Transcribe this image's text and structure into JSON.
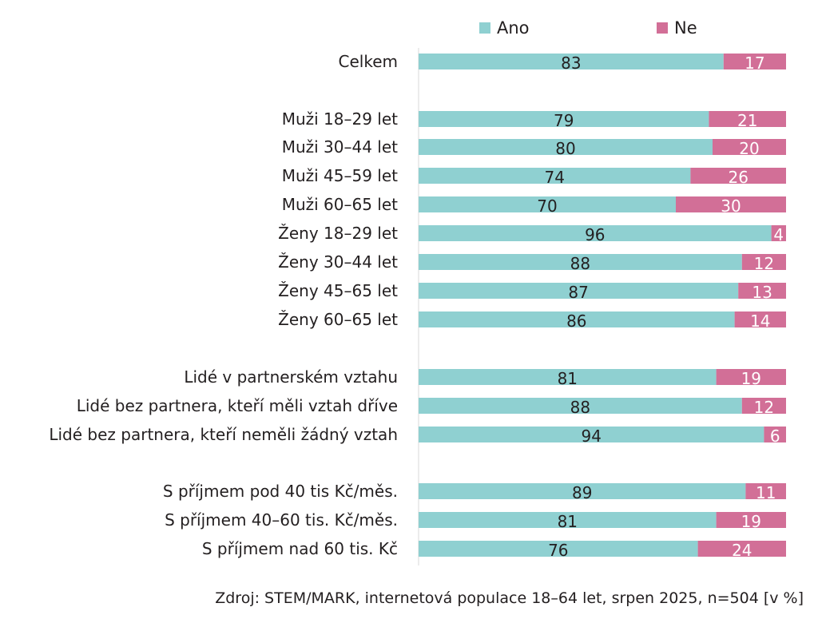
{
  "chart_data": {
    "type": "bar",
    "stacked": true,
    "orientation": "horizontal",
    "xlim": [
      0,
      100
    ],
    "legend_position": "top",
    "colors": {
      "Ano": "#8fd0d1",
      "Ne": "#d26f97"
    },
    "categories": [
      "Celkem",
      "Muži 18–29 let",
      "Muži 30–44 let",
      "Muži 45–59 let",
      "Muži 60–65 let",
      "Ženy 18–29 let",
      "Ženy 30–44 let",
      "Ženy 45–65 let",
      "Ženy 60–65 let",
      "Lidé v partnerském vztahu",
      "Lidé bez partnera, kteří měli vztah dříve",
      "Lidé bez partnera, kteří neměli žádný vztah",
      "S příjmem pod 40 tis Kč/měs.",
      "S příjmem 40–60 tis. Kč/měs.",
      "S příjmem nad 60 tis. Kč"
    ],
    "series": [
      {
        "name": "Ano",
        "values": [
          83,
          79,
          80,
          74,
          70,
          96,
          88,
          87,
          86,
          81,
          88,
          94,
          89,
          81,
          76
        ]
      },
      {
        "name": "Ne",
        "values": [
          17,
          21,
          20,
          26,
          30,
          4,
          12,
          13,
          14,
          19,
          12,
          6,
          11,
          19,
          24
        ]
      }
    ],
    "source": "Zdroj: STEM/MARK, internetová populace 18–64 let, srpen 2025, n=504 [v %]"
  }
}
